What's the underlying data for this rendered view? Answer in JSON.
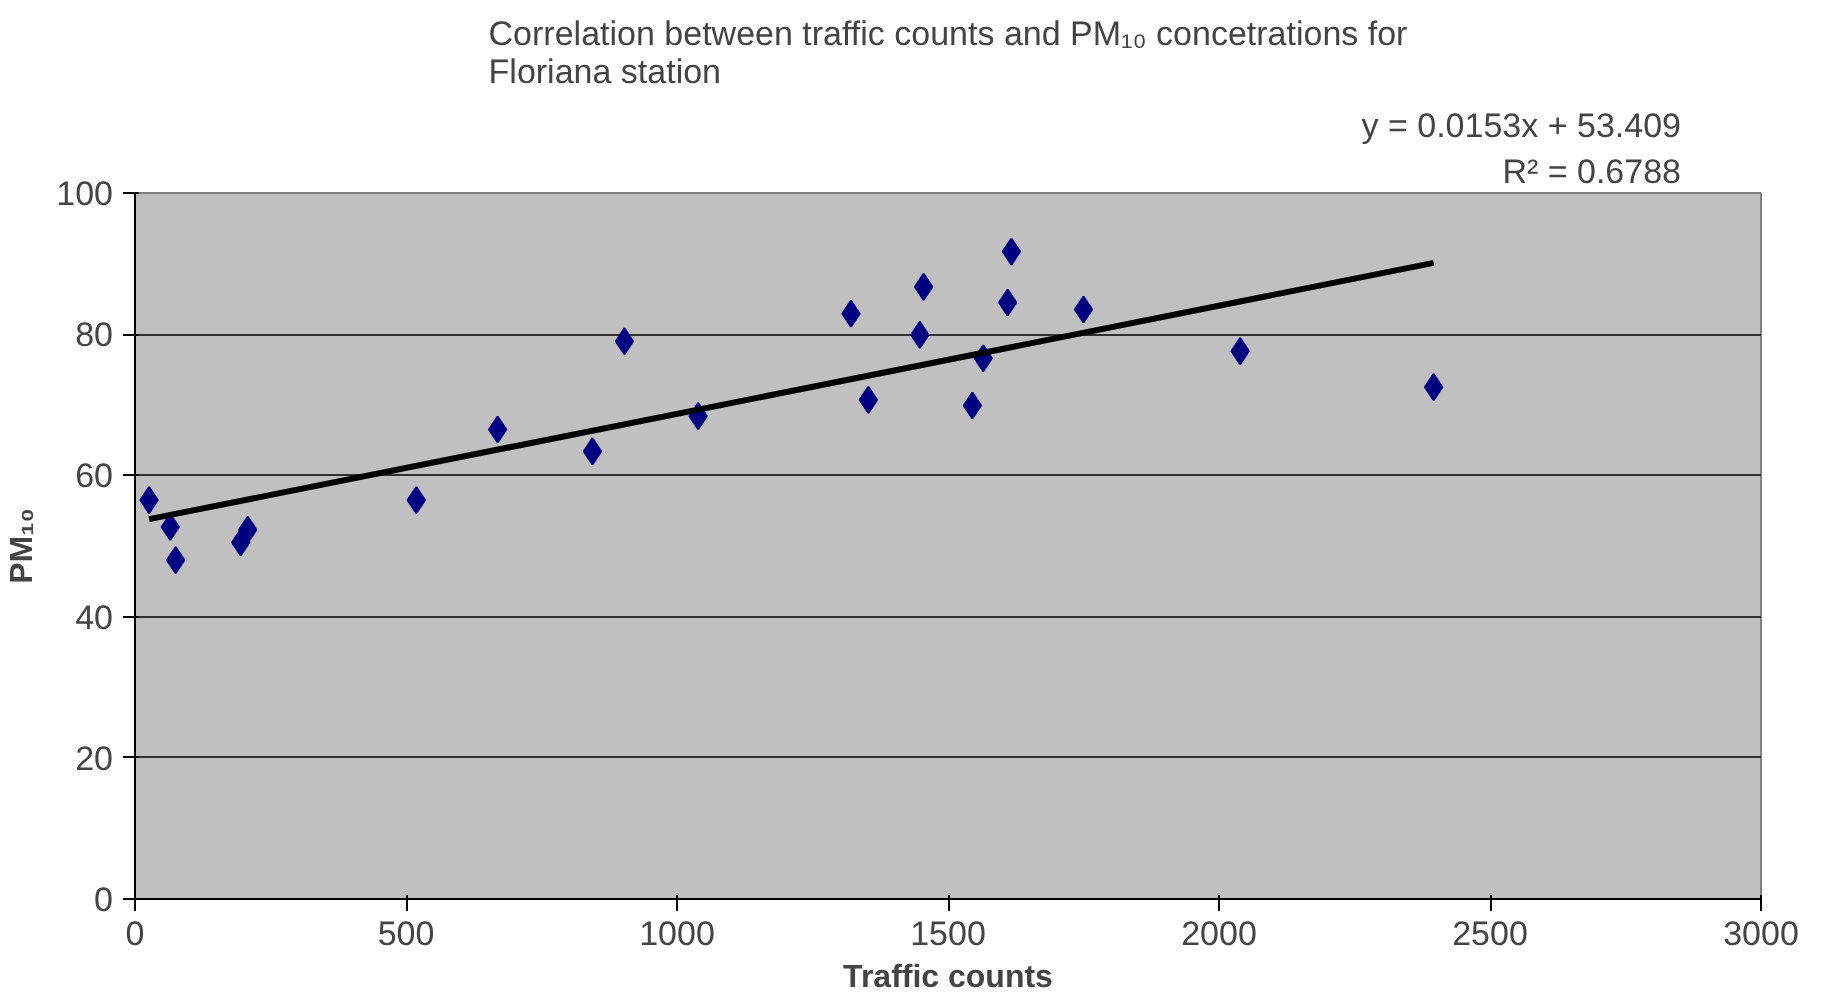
{
  "chart_data": {
    "type": "scatter",
    "title": "Correlation between traffic counts and PM₁₀ concetrations for\nFloriana station",
    "xlabel": "Traffic counts",
    "ylabel": "PM₁₀",
    "series": [
      {
        "type": "scatter",
        "color": "#000080",
        "marker": "diamond",
        "x": [
          26,
          65,
          75,
          195,
          208,
          519,
          669,
          844,
          903,
          1039,
          1321,
          1353,
          1448,
          1455,
          1545,
          1565,
          1610,
          1617,
          1750,
          2039,
          2396
        ],
        "values": [
          56.5,
          52.7,
          48,
          50.5,
          52.3,
          56.5,
          66.5,
          63.4,
          79,
          68.4,
          82.9,
          70.7,
          79.9,
          86.7,
          69.9,
          76.6,
          84.5,
          91.7,
          83.5,
          77.6,
          72.5
        ]
      },
      {
        "type": "line",
        "color": "#000000",
        "marker": "none",
        "x": [
          26,
          2396
        ],
        "values": [
          53.8,
          90.1
        ]
      }
    ],
    "annotations": [
      "y = 0.0153x + 53.409",
      "R² = 0.6788"
    ],
    "xlim": [
      0,
      3000
    ],
    "xticks": [
      0,
      500,
      1000,
      1500,
      2000,
      2500,
      3000
    ],
    "ylim": [
      0,
      100
    ],
    "yticks": [
      0,
      20,
      40,
      60,
      80,
      100
    ],
    "grid": "y"
  }
}
